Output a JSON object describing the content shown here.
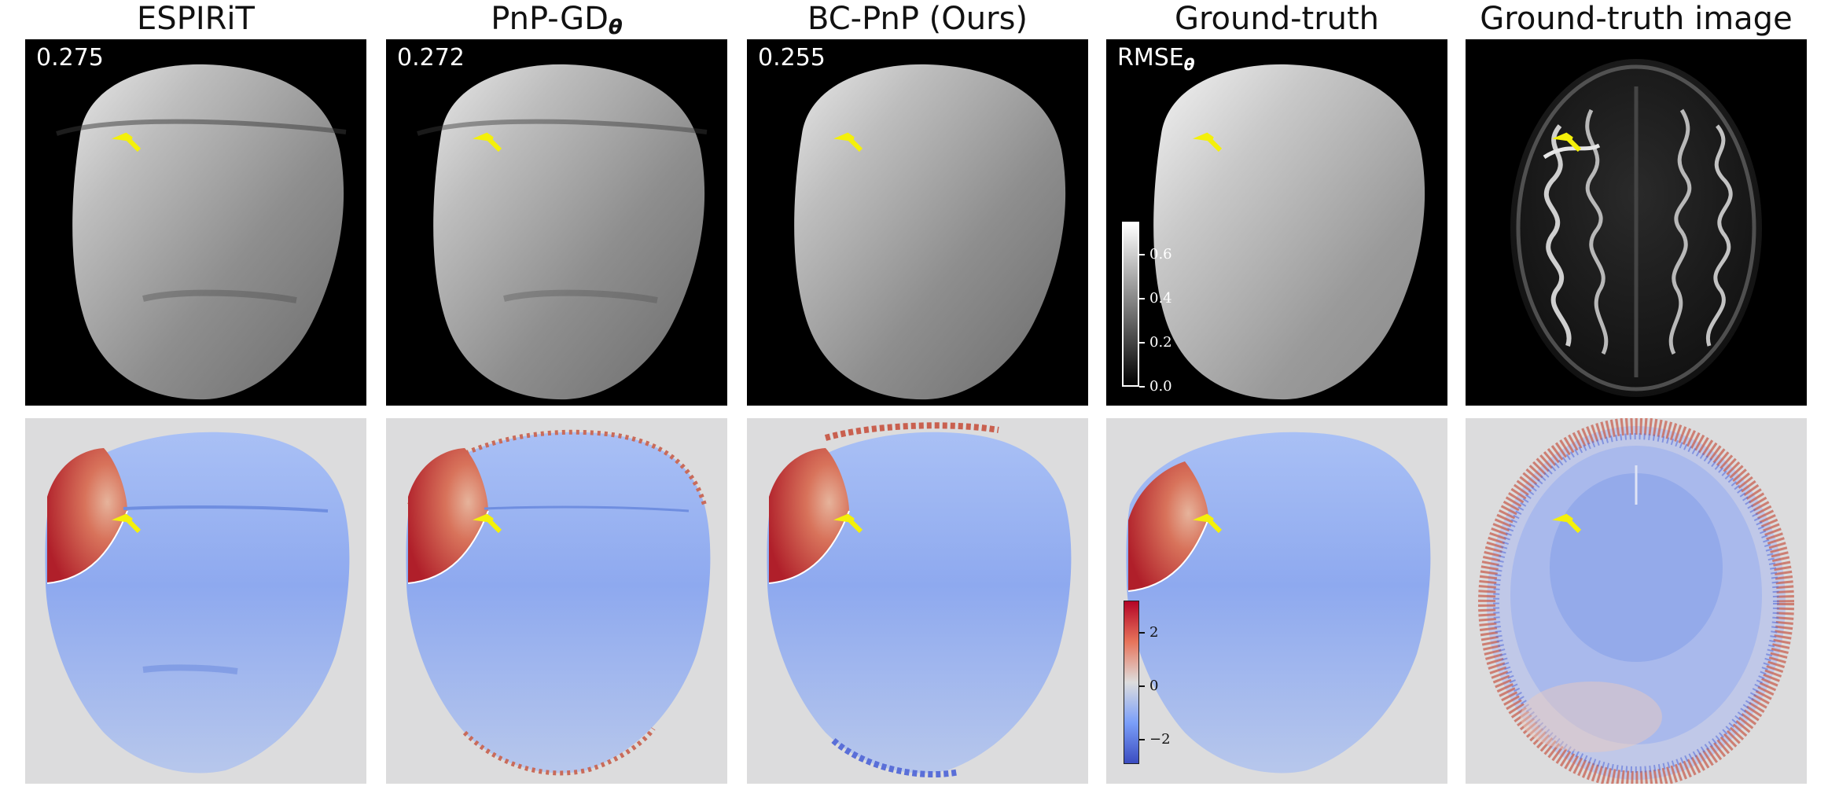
{
  "columns": [
    {
      "title": "ESPIRiT",
      "metric": "0.275"
    },
    {
      "title": "PnP-GD",
      "title_sub": "θ",
      "metric": "0.272"
    },
    {
      "title": "BC-PnP (Ours)",
      "metric": "0.255"
    },
    {
      "title": "Ground-truth",
      "metric": "RMSE",
      "metric_sub": "θ"
    },
    {
      "title": "Ground-truth image"
    }
  ],
  "colorbar_top": {
    "ticks": [
      "0.6",
      "0.4",
      "0.2",
      "0.0"
    ],
    "colormap": "gray",
    "range": [
      0.0,
      0.75
    ]
  },
  "colorbar_bottom": {
    "ticks": [
      "2",
      "0",
      "−2"
    ],
    "colormap": "coolwarm",
    "range": [
      -3,
      3
    ]
  },
  "colors": {
    "arrow": "#f4f00a",
    "background_top": "#000000",
    "background_bottom": "#dcdcdd",
    "phase_red": "#b4232c",
    "phase_blue": "#8aa8f0"
  }
}
